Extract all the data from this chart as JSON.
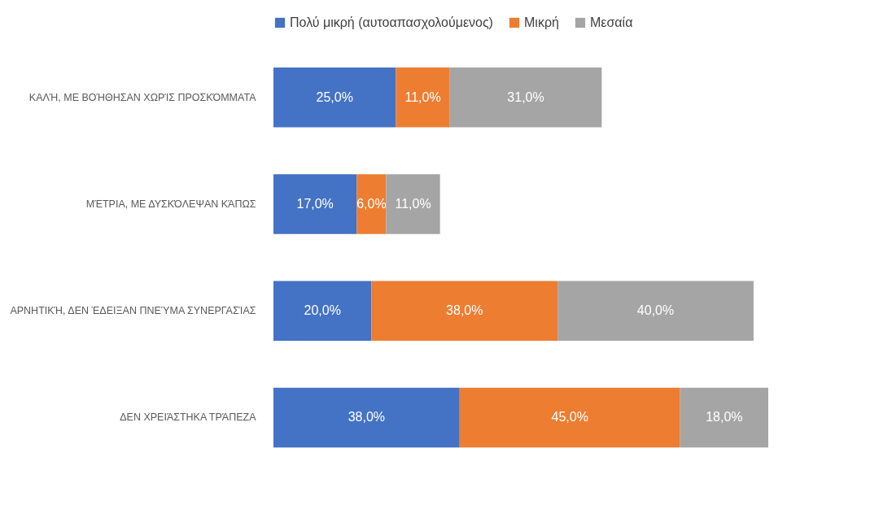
{
  "chart_data": {
    "type": "bar",
    "orientation": "horizontal",
    "stacked": true,
    "legend": "top",
    "categories": [
      "ΚΑΛΉ, ΜΕ ΒΟΉΘΗΣΑΝ ΧΩΡΊΣ ΠΡΟΣΚΌΜΜΑΤΑ",
      "ΜΈΤΡΙΑ, ΜΕ ΔΥΣΚΌΛΕΨΑΝ ΚΆΠΩΣ",
      "ΑΡΝΗΤΙΚΉ, ΔΕΝ ΈΔΕΙΞΑΝ ΠΝΕΎΜΑ ΣΥΝΕΡΓΑΣΊΑΣ",
      "ΔΕΝ ΧΡΕΙΆΣΤΗΚΑ ΤΡΆΠΕΖΑ"
    ],
    "series": [
      {
        "name": "Πολύ μικρή (αυτοαπασχολούμενος)",
        "color": "#4472c4",
        "values": [
          25,
          17,
          20,
          38
        ],
        "value_labels": [
          "25,0%",
          "17,0%",
          "20,0%",
          "38,0%"
        ]
      },
      {
        "name": "Μικρή",
        "color": "#ed7d31",
        "values": [
          11,
          6,
          38,
          45
        ],
        "value_labels": [
          "11,0%",
          "6,0%",
          "38,0%",
          "45,0%"
        ]
      },
      {
        "name": "Μεσαία",
        "color": "#a5a5a5",
        "values": [
          31,
          11,
          40,
          18
        ],
        "value_labels": [
          "31,0%",
          "11,0%",
          "40,0%",
          "18,0%"
        ]
      }
    ]
  }
}
